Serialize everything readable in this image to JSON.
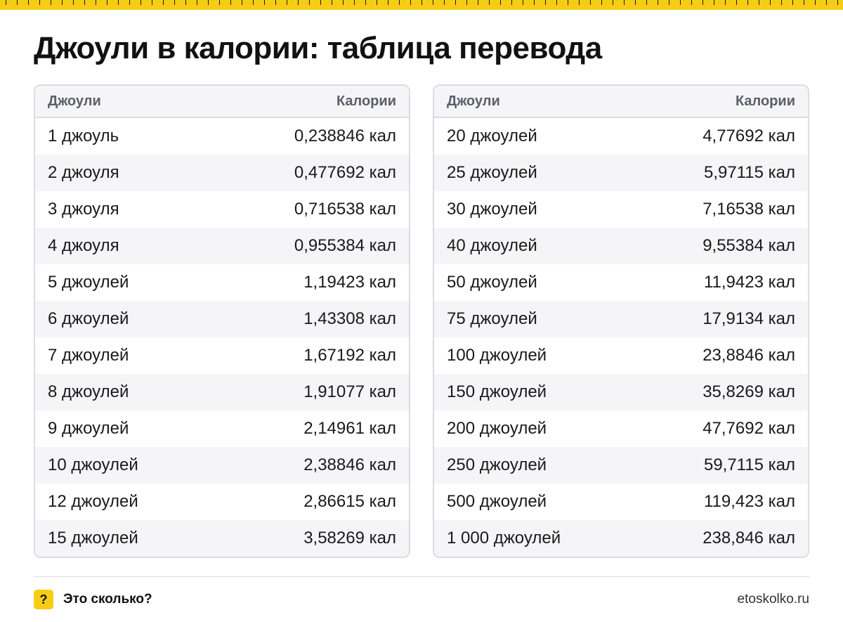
{
  "title": "Джоули в калории: таблица перевода",
  "colors": {
    "accent": "#f7cc15",
    "border": "#dcdde2",
    "stripe": "#f5f5f7"
  },
  "tables": [
    {
      "headers": {
        "joules": "Джоули",
        "calories": "Калории"
      },
      "rows": [
        {
          "j": "1 джоуль",
          "c": "0,238846 кал"
        },
        {
          "j": "2 джоуля",
          "c": "0,477692 кал"
        },
        {
          "j": "3 джоуля",
          "c": "0,716538 кал"
        },
        {
          "j": "4 джоуля",
          "c": "0,955384 кал"
        },
        {
          "j": "5 джоулей",
          "c": "1,19423 кал"
        },
        {
          "j": "6 джоулей",
          "c": "1,43308 кал"
        },
        {
          "j": "7 джоулей",
          "c": "1,67192 кал"
        },
        {
          "j": "8 джоулей",
          "c": "1,91077 кал"
        },
        {
          "j": "9 джоулей",
          "c": "2,14961 кал"
        },
        {
          "j": "10 джоулей",
          "c": "2,38846 кал"
        },
        {
          "j": "12 джоулей",
          "c": "2,86615 кал"
        },
        {
          "j": "15 джоулей",
          "c": "3,58269 кал"
        }
      ]
    },
    {
      "headers": {
        "joules": "Джоули",
        "calories": "Калории"
      },
      "rows": [
        {
          "j": "20 джоулей",
          "c": "4,77692 кал"
        },
        {
          "j": "25 джоулей",
          "c": "5,97115 кал"
        },
        {
          "j": "30 джоулей",
          "c": "7,16538 кал"
        },
        {
          "j": "40 джоулей",
          "c": "9,55384 кал"
        },
        {
          "j": "50 джоулей",
          "c": "11,9423 кал"
        },
        {
          "j": "75 джоулей",
          "c": "17,9134 кал"
        },
        {
          "j": "100 джоулей",
          "c": "23,8846 кал"
        },
        {
          "j": "150 джоулей",
          "c": "35,8269 кал"
        },
        {
          "j": "200 джоулей",
          "c": "47,7692 кал"
        },
        {
          "j": "250 джоулей",
          "c": "59,7115 кал"
        },
        {
          "j": "500 джоулей",
          "c": "119,423 кал"
        },
        {
          "j": "1 000 джоулей",
          "c": "238,846 кал"
        }
      ]
    }
  ],
  "footer": {
    "badge": "?",
    "brand": "Это сколько?",
    "site": "etoskolko.ru"
  }
}
